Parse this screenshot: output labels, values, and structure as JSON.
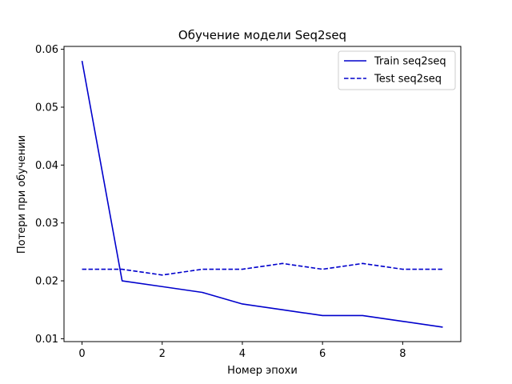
{
  "chart_data": {
    "type": "line",
    "title": "Обучение модели Seq2seq",
    "xlabel": "Номер эпохи",
    "ylabel": "Потери при обучении",
    "x": [
      0,
      1,
      2,
      3,
      4,
      5,
      6,
      7,
      8,
      9
    ],
    "xlim": [
      -0.45,
      9.45
    ],
    "ylim": [
      0.0095,
      0.0605
    ],
    "xticks": [
      0,
      2,
      4,
      6,
      8
    ],
    "yticks": [
      0.01,
      0.02,
      0.03,
      0.04,
      0.05,
      0.06
    ],
    "ytick_labels": [
      "0.01",
      "0.02",
      "0.03",
      "0.04",
      "0.05",
      "0.06"
    ],
    "grid": false,
    "legend_position": "top-right",
    "series": [
      {
        "name": "Train seq2seq",
        "style": "solid",
        "color": "#0000cc",
        "values": [
          0.058,
          0.02,
          0.019,
          0.018,
          0.016,
          0.015,
          0.014,
          0.014,
          0.013,
          0.012
        ]
      },
      {
        "name": "Test seq2seq",
        "style": "dashed",
        "color": "#0000cc",
        "values": [
          0.022,
          0.022,
          0.021,
          0.022,
          0.022,
          0.023,
          0.022,
          0.023,
          0.022,
          0.022
        ]
      }
    ]
  }
}
